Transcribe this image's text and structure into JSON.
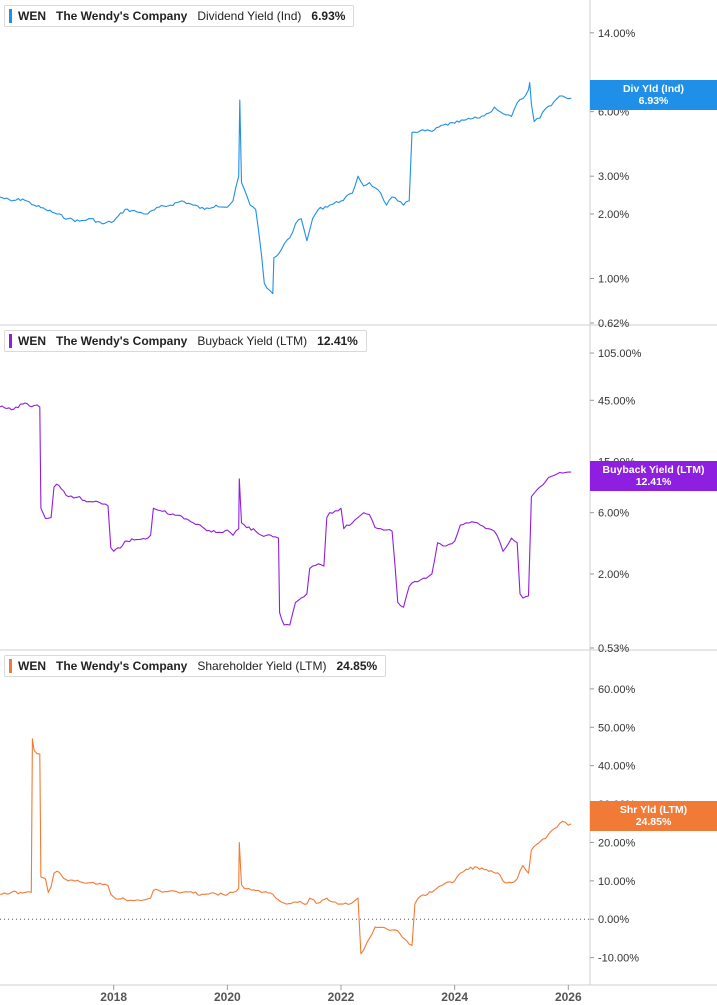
{
  "chart_data": [
    {
      "type": "line",
      "scale": "log",
      "ticker": "WEN",
      "company": "The Wendy's Company",
      "metric": "Dividend Yield (Ind)",
      "value_label": "6.93%",
      "tag": {
        "line1": "Div Yld (Ind)",
        "line2": "6.93%"
      },
      "color": "#1f8fe8",
      "yticks": [
        "14.00%",
        "8.00%",
        "6.00%",
        "3.00%",
        "2.00%",
        "1.00%",
        "0.62%"
      ],
      "ylim": [
        0.62,
        17.5
      ],
      "x": [
        2016.0,
        2016.2,
        2016.4,
        2016.6,
        2016.8,
        2017.0,
        2017.2,
        2017.4,
        2017.6,
        2017.8,
        2018.0,
        2018.2,
        2018.4,
        2018.6,
        2018.8,
        2019.0,
        2019.2,
        2019.4,
        2019.6,
        2019.8,
        2020.0,
        2020.1,
        2020.2,
        2020.22,
        2020.25,
        2020.3,
        2020.4,
        2020.5,
        2020.6,
        2020.65,
        2020.7,
        2020.8,
        2020.82,
        2020.9,
        2021.0,
        2021.1,
        2021.2,
        2021.3,
        2021.4,
        2021.5,
        2021.6,
        2021.8,
        2022.0,
        2022.2,
        2022.3,
        2022.4,
        2022.5,
        2022.6,
        2022.7,
        2022.8,
        2022.9,
        2023.0,
        2023.1,
        2023.2,
        2023.25,
        2023.4,
        2023.6,
        2023.8,
        2024.0,
        2024.2,
        2024.4,
        2024.6,
        2024.7,
        2024.8,
        2024.9,
        2025.0,
        2025.1,
        2025.2,
        2025.3,
        2025.32,
        2025.35,
        2025.4,
        2025.5,
        2025.6,
        2025.7,
        2025.8,
        2025.9,
        2026.0,
        2026.05
      ],
      "y": [
        2.4,
        2.3,
        2.35,
        2.2,
        2.1,
        2.0,
        1.9,
        1.85,
        1.9,
        1.8,
        1.85,
        2.1,
        2.05,
        2.0,
        2.15,
        2.2,
        2.3,
        2.2,
        2.1,
        2.2,
        2.15,
        2.3,
        3.0,
        6.8,
        2.8,
        2.6,
        2.2,
        2.1,
        1.3,
        0.95,
        0.9,
        0.85,
        1.25,
        1.3,
        1.45,
        1.55,
        1.8,
        1.9,
        1.5,
        1.9,
        2.1,
        2.2,
        2.3,
        2.5,
        3.0,
        2.7,
        2.8,
        2.65,
        2.5,
        2.2,
        2.4,
        2.3,
        2.2,
        2.3,
        4.8,
        4.9,
        4.85,
        5.2,
        5.3,
        5.5,
        5.6,
        5.9,
        6.3,
        6.0,
        5.8,
        5.7,
        6.6,
        6.9,
        7.6,
        8.2,
        6.5,
        5.4,
        5.6,
        6.2,
        6.4,
        6.9,
        7.1,
        6.9,
        6.93
      ]
    },
    {
      "type": "line",
      "scale": "log",
      "ticker": "WEN",
      "company": "The Wendy's Company",
      "metric": "Buyback Yield (LTM)",
      "value_label": "12.41%",
      "tag": {
        "line1": "Buyback Yield (LTM)",
        "line2": "12.41%"
      },
      "color": "#8f1fe0",
      "yticks": [
        "105.00%",
        "45.00%",
        "15.00%",
        "6.00%",
        "2.00%",
        "0.53%"
      ],
      "ylim": [
        0.53,
        140
      ],
      "x": [
        2016.0,
        2016.2,
        2016.4,
        2016.6,
        2016.7,
        2016.72,
        2016.8,
        2016.9,
        2016.95,
        2017.0,
        2017.2,
        2017.3,
        2017.4,
        2017.45,
        2017.6,
        2017.8,
        2017.9,
        2017.95,
        2018.0,
        2018.15,
        2018.2,
        2018.4,
        2018.6,
        2018.65,
        2018.7,
        2018.9,
        2019.0,
        2019.2,
        2019.4,
        2019.6,
        2019.8,
        2020.0,
        2020.1,
        2020.2,
        2020.21,
        2020.25,
        2020.3,
        2020.5,
        2020.6,
        2020.8,
        2020.9,
        2020.92,
        2021.0,
        2021.1,
        2021.2,
        2021.3,
        2021.4,
        2021.45,
        2021.5,
        2021.6,
        2021.7,
        2021.75,
        2021.8,
        2021.9,
        2022.0,
        2022.05,
        2022.1,
        2022.2,
        2022.3,
        2022.4,
        2022.5,
        2022.6,
        2022.7,
        2022.8,
        2022.9,
        2023.0,
        2023.1,
        2023.2,
        2023.25,
        2023.3,
        2023.4,
        2023.5,
        2023.6,
        2023.7,
        2023.8,
        2023.9,
        2024.0,
        2024.1,
        2024.2,
        2024.3,
        2024.4,
        2024.5,
        2024.6,
        2024.7,
        2024.8,
        2024.85,
        2024.9,
        2025.0,
        2025.1,
        2025.15,
        2025.2,
        2025.3,
        2025.35,
        2025.4,
        2025.5,
        2025.6,
        2025.7,
        2025.8,
        2025.9,
        2026.0,
        2026.05
      ],
      "y": [
        40.0,
        38.0,
        42.0,
        41.0,
        40.0,
        6.5,
        5.4,
        5.5,
        9.5,
        10.0,
        8.0,
        7.8,
        8.0,
        7.5,
        7.3,
        7.0,
        6.8,
        3.2,
        3.0,
        3.3,
        3.6,
        3.7,
        3.8,
        4.0,
        6.5,
        6.2,
        5.8,
        5.6,
        5.0,
        4.5,
        4.2,
        4.4,
        4.0,
        4.5,
        11.0,
        5.0,
        4.8,
        4.3,
        4.0,
        3.9,
        3.8,
        1.0,
        0.8,
        0.8,
        1.2,
        1.3,
        1.4,
        2.2,
        2.3,
        2.4,
        2.3,
        5.5,
        6.0,
        6.2,
        6.5,
        4.5,
        4.8,
        5.0,
        5.5,
        6.0,
        5.8,
        4.6,
        4.5,
        4.4,
        4.3,
        1.2,
        1.1,
        1.6,
        1.7,
        1.75,
        1.8,
        1.85,
        2.0,
        3.5,
        3.3,
        3.4,
        3.6,
        4.8,
        5.0,
        5.1,
        5.0,
        4.7,
        4.5,
        4.3,
        3.5,
        3.0,
        3.2,
        3.8,
        3.5,
        1.4,
        1.3,
        1.35,
        8.0,
        8.5,
        9.5,
        10.5,
        11.5,
        12.0,
        12.2,
        12.41,
        12.41
      ]
    },
    {
      "type": "line",
      "scale": "linear",
      "ticker": "WEN",
      "company": "The Wendy's Company",
      "metric": "Shareholder Yield (LTM)",
      "value_label": "24.85%",
      "tag": {
        "line1": "Shr Yld (LTM)",
        "line2": "24.85%"
      },
      "color": "#f07a36",
      "yticks": [
        "60.00%",
        "50.00%",
        "40.00%",
        "30.00%",
        "20.00%",
        "10.00%",
        "0.00%",
        "-10.00%"
      ],
      "ylim": [
        -14,
        67
      ],
      "zero_line": true,
      "x": [
        2016.0,
        2016.2,
        2016.4,
        2016.5,
        2016.55,
        2016.57,
        2016.6,
        2016.7,
        2016.72,
        2016.8,
        2016.85,
        2016.9,
        2016.95,
        2017.0,
        2017.2,
        2017.4,
        2017.6,
        2017.8,
        2017.9,
        2017.95,
        2018.0,
        2018.2,
        2018.4,
        2018.6,
        2018.65,
        2018.7,
        2018.9,
        2019.0,
        2019.2,
        2019.4,
        2019.6,
        2019.8,
        2020.0,
        2020.1,
        2020.2,
        2020.21,
        2020.25,
        2020.3,
        2020.5,
        2020.6,
        2020.8,
        2020.9,
        2020.95,
        2021.0,
        2021.2,
        2021.4,
        2021.45,
        2021.6,
        2021.75,
        2021.9,
        2022.0,
        2022.2,
        2022.3,
        2022.35,
        2022.4,
        2022.5,
        2022.6,
        2022.8,
        2022.9,
        2023.0,
        2023.2,
        2023.25,
        2023.3,
        2023.4,
        2023.6,
        2023.8,
        2024.0,
        2024.1,
        2024.2,
        2024.4,
        2024.6,
        2024.8,
        2024.85,
        2025.0,
        2025.1,
        2025.2,
        2025.3,
        2025.35,
        2025.4,
        2025.6,
        2025.7,
        2025.8,
        2025.9,
        2026.0,
        2026.05
      ],
      "y": [
        6.5,
        7.0,
        6.8,
        7.2,
        7.0,
        47.0,
        44.0,
        43.0,
        11.0,
        10.5,
        7.0,
        8.5,
        12.0,
        12.5,
        10.0,
        9.8,
        9.5,
        9.0,
        8.8,
        6.5,
        5.8,
        5.2,
        5.0,
        5.3,
        5.5,
        7.5,
        7.2,
        7.4,
        7.0,
        6.8,
        6.5,
        6.6,
        6.4,
        7.0,
        8.0,
        20.0,
        9.0,
        8.0,
        7.5,
        7.0,
        6.5,
        5.0,
        4.5,
        4.2,
        4.5,
        4.0,
        5.5,
        4.2,
        5.5,
        4.5,
        4.0,
        4.3,
        5.5,
        -9.0,
        -8.0,
        -5.0,
        -2.0,
        -2.5,
        -2.8,
        -3.0,
        -6.5,
        -6.8,
        4.0,
        6.0,
        7.0,
        9.0,
        10.0,
        12.0,
        13.0,
        13.5,
        12.5,
        11.5,
        10.0,
        9.5,
        10.5,
        14.0,
        12.0,
        18.0,
        19.0,
        21.0,
        23.0,
        24.0,
        25.5,
        24.5,
        24.85
      ]
    }
  ],
  "x_axis": {
    "ticks": [
      "2018",
      "2020",
      "2022",
      "2024",
      "2026"
    ],
    "values": [
      2018,
      2020,
      2022,
      2024,
      2026
    ],
    "range": [
      2016.0,
      2026.1
    ]
  }
}
